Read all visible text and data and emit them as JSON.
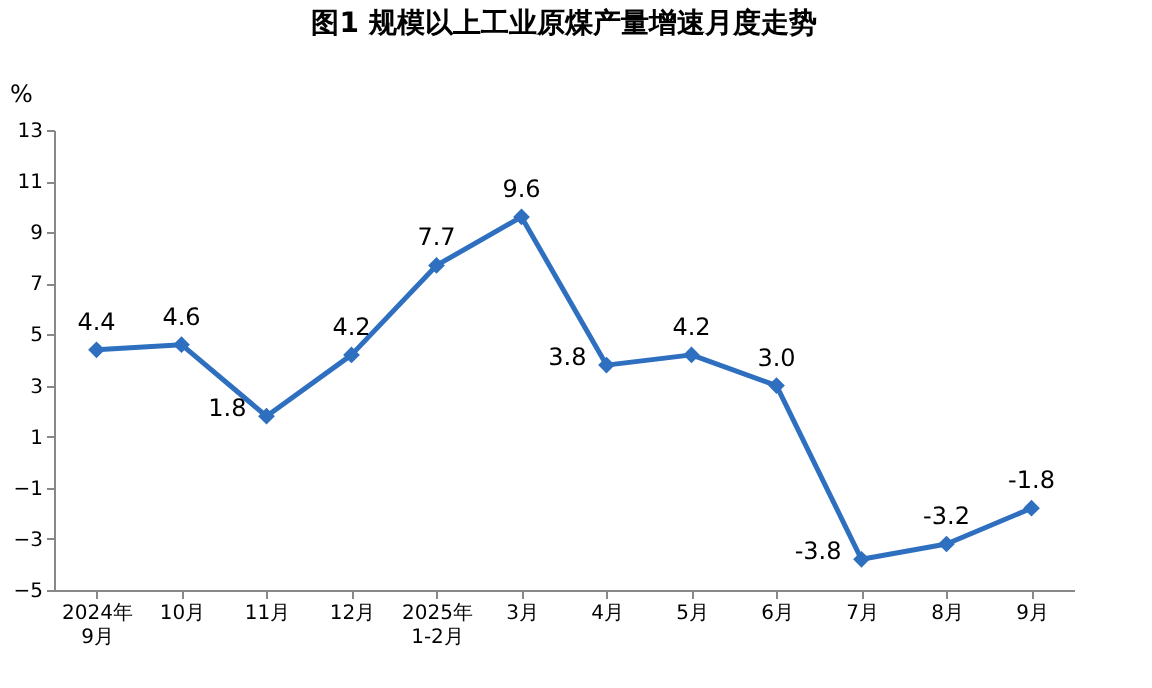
{
  "chart_data": {
    "type": "line",
    "title": "图1  规模以上工业原煤产量增速月度走势",
    "ylabel": "%",
    "categories": [
      "2024年\n9月",
      "10月",
      "11月",
      "12月",
      "2025年\n1-2月",
      "3月",
      "4月",
      "5月",
      "6月",
      "7月",
      "8月",
      "9月"
    ],
    "series": [
      {
        "color": "#2e6fc0",
        "values": [
          4.4,
          4.6,
          1.8,
          4.2,
          7.7,
          9.6,
          3.8,
          4.2,
          3.0,
          -3.8,
          -3.2,
          -1.8
        ]
      }
    ],
    "value_labels": [
      "4.4",
      "4.6",
      "1.8",
      "4.2",
      "7.7",
      "9.6",
      "3.8",
      "4.2",
      "3.0",
      "-3.8",
      "-3.2",
      "-1.8"
    ],
    "ylim": [
      -5,
      13
    ],
    "yticks": [
      -5,
      -3,
      -1,
      1,
      3,
      5,
      7,
      9,
      11,
      13
    ],
    "grid": false,
    "marker": "diamond",
    "line_style": "solid"
  }
}
